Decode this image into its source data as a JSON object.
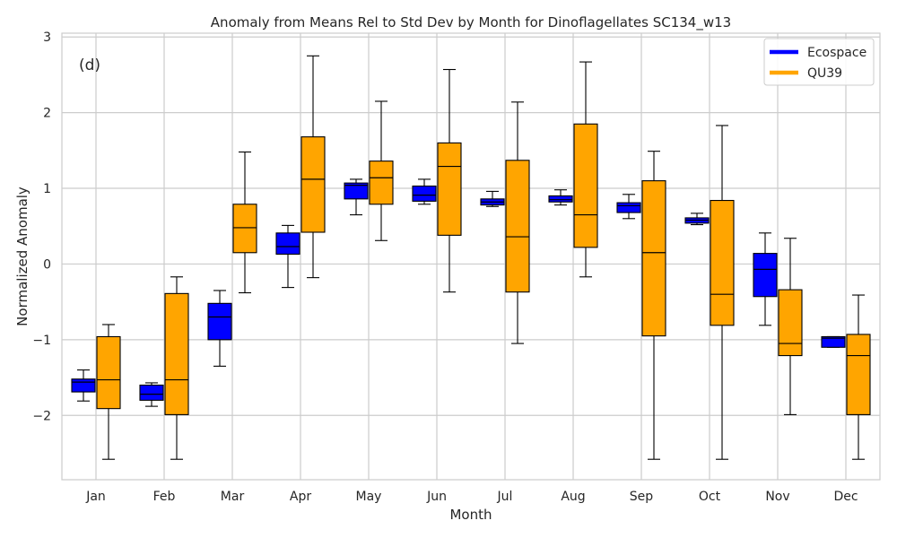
{
  "chart_data": {
    "type": "box",
    "title": "Anomaly from Means Rel to Std Dev by Month for Dinoflagellates SC134_w13",
    "panel_label": "(d)",
    "xlabel": "Month",
    "ylabel": "Normalized Anomaly",
    "ylim": [
      -2.85,
      3.05
    ],
    "yticks": [
      -2,
      -1,
      0,
      1,
      2,
      3
    ],
    "ytick_labels": [
      "−2",
      "−1",
      "0",
      "1",
      "2",
      "3"
    ],
    "grid": true,
    "legend_position": "top-right",
    "categories": [
      "Jan",
      "Feb",
      "Mar",
      "Apr",
      "May",
      "Jun",
      "Jul",
      "Aug",
      "Sep",
      "Oct",
      "Nov",
      "Dec"
    ],
    "series": [
      {
        "name": "Ecospace",
        "color": "#0000ff",
        "boxes": [
          {
            "whislo": -1.81,
            "q1": -1.69,
            "med": -1.56,
            "q3": -1.52,
            "whishi": -1.4
          },
          {
            "whislo": -1.88,
            "q1": -1.8,
            "med": -1.72,
            "q3": -1.6,
            "whishi": -1.57
          },
          {
            "whislo": -1.35,
            "q1": -1.0,
            "med": -0.7,
            "q3": -0.52,
            "whishi": -0.35
          },
          {
            "whislo": -0.31,
            "q1": 0.13,
            "med": 0.23,
            "q3": 0.41,
            "whishi": 0.51
          },
          {
            "whislo": 0.65,
            "q1": 0.86,
            "med": 1.04,
            "q3": 1.07,
            "whishi": 1.12
          },
          {
            "whislo": 0.79,
            "q1": 0.83,
            "med": 0.91,
            "q3": 1.03,
            "whishi": 1.12
          },
          {
            "whislo": 0.76,
            "q1": 0.78,
            "med": 0.82,
            "q3": 0.86,
            "whishi": 0.96
          },
          {
            "whislo": 0.78,
            "q1": 0.82,
            "med": 0.85,
            "q3": 0.9,
            "whishi": 0.98
          },
          {
            "whislo": 0.6,
            "q1": 0.68,
            "med": 0.77,
            "q3": 0.81,
            "whishi": 0.92
          },
          {
            "whislo": 0.52,
            "q1": 0.54,
            "med": 0.58,
            "q3": 0.61,
            "whishi": 0.67
          },
          {
            "whislo": -0.81,
            "q1": -0.43,
            "med": -0.07,
            "q3": 0.14,
            "whishi": 0.41
          },
          {
            "whislo": -1.1,
            "q1": -1.1,
            "med": -0.98,
            "q3": -0.96,
            "whishi": -0.96
          }
        ]
      },
      {
        "name": "QU39",
        "color": "#ffa500",
        "boxes": [
          {
            "whislo": -2.58,
            "q1": -1.91,
            "med": -1.53,
            "q3": -0.96,
            "whishi": -0.8
          },
          {
            "whislo": -2.58,
            "q1": -1.99,
            "med": -1.53,
            "q3": -0.39,
            "whishi": -0.17
          },
          {
            "whislo": -0.38,
            "q1": 0.15,
            "med": 0.48,
            "q3": 0.79,
            "whishi": 1.48
          },
          {
            "whislo": -0.18,
            "q1": 0.42,
            "med": 1.12,
            "q3": 1.68,
            "whishi": 2.75
          },
          {
            "whislo": 0.31,
            "q1": 0.79,
            "med": 1.14,
            "q3": 1.36,
            "whishi": 2.15
          },
          {
            "whislo": -0.37,
            "q1": 0.38,
            "med": 1.29,
            "q3": 1.6,
            "whishi": 2.57
          },
          {
            "whislo": -1.05,
            "q1": -0.37,
            "med": 0.36,
            "q3": 1.37,
            "whishi": 2.14
          },
          {
            "whislo": -0.17,
            "q1": 0.22,
            "med": 0.65,
            "q3": 1.85,
            "whishi": 2.67
          },
          {
            "whislo": -2.58,
            "q1": -0.95,
            "med": 0.15,
            "q3": 1.1,
            "whishi": 1.49
          },
          {
            "whislo": -2.58,
            "q1": -0.81,
            "med": -0.4,
            "q3": 0.84,
            "whishi": 1.83
          },
          {
            "whislo": -1.99,
            "q1": -1.21,
            "med": -1.05,
            "q3": -0.34,
            "whishi": 0.34
          },
          {
            "whislo": -2.58,
            "q1": -1.99,
            "med": -1.21,
            "q3": -0.93,
            "whishi": -0.41
          }
        ]
      }
    ]
  }
}
